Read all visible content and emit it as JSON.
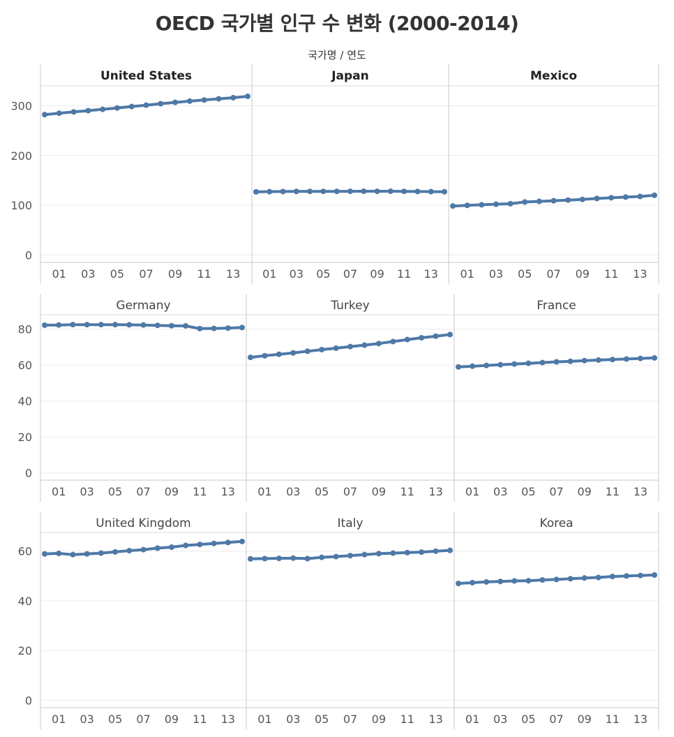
{
  "chart_data": {
    "type": "line",
    "title": "OECD 국가별 인구 수 변화 (2000-2014)",
    "subtitle": "국가명 / 연도",
    "x": [
      2000,
      2001,
      2002,
      2003,
      2004,
      2005,
      2006,
      2007,
      2008,
      2009,
      2010,
      2011,
      2012,
      2013,
      2014
    ],
    "x_tick_labels": [
      "01",
      "03",
      "05",
      "07",
      "09",
      "11",
      "13"
    ],
    "rows": [
      {
        "y_ticks": [
          0,
          100,
          200,
          300
        ],
        "ylim": [
          -15,
          340
        ],
        "panels": [
          {
            "name": "United States",
            "values": [
              282.2,
              285.0,
              287.6,
              290.1,
              292.8,
              295.5,
              298.4,
              301.2,
              304.1,
              306.8,
              309.3,
              311.6,
              313.9,
              316.1,
              318.9
            ]
          },
          {
            "name": "Japan",
            "values": [
              126.9,
              127.3,
              127.5,
              127.7,
              127.8,
              127.8,
              127.9,
              128.0,
              128.1,
              128.0,
              128.1,
              127.8,
              127.6,
              127.3,
              127.1
            ]
          },
          {
            "name": "Mexico",
            "values": [
              98.4,
              99.7,
              100.9,
              102.0,
              103.0,
              106.5,
              107.7,
              109.0,
              110.3,
              111.7,
              113.5,
              115.0,
              116.3,
              117.6,
              120.0
            ]
          }
        ]
      },
      {
        "y_ticks": [
          0,
          20,
          40,
          60,
          80
        ],
        "ylim": [
          -4,
          88
        ],
        "panels": [
          {
            "name": "Germany",
            "values": [
              82.2,
              82.3,
              82.5,
              82.5,
              82.5,
              82.5,
              82.4,
              82.3,
              82.1,
              81.9,
              81.8,
              80.3,
              80.4,
              80.6,
              80.9
            ]
          },
          {
            "name": "Turkey",
            "values": [
              64.3,
              65.2,
              66.0,
              66.8,
              67.7,
              68.6,
              69.4,
              70.3,
              71.1,
              72.0,
              73.1,
              74.2,
              75.2,
              76.1,
              77.0
            ]
          },
          {
            "name": "France",
            "values": [
              59.0,
              59.4,
              59.8,
              60.2,
              60.6,
              61.0,
              61.4,
              61.8,
              62.1,
              62.5,
              62.8,
              63.1,
              63.4,
              63.7,
              64.0
            ]
          }
        ]
      },
      {
        "y_ticks": [
          0,
          20,
          40,
          60
        ],
        "ylim": [
          -3,
          67.5
        ],
        "panels": [
          {
            "name": "United Kingdom",
            "values": [
              58.9,
              59.1,
              58.6,
              58.9,
              59.2,
              59.7,
              60.2,
              60.6,
              61.2,
              61.6,
              62.3,
              62.7,
              63.1,
              63.5,
              63.9
            ]
          },
          {
            "name": "Italy",
            "values": [
              56.9,
              57.0,
              57.1,
              57.2,
              57.0,
              57.5,
              57.8,
              58.2,
              58.6,
              59.0,
              59.2,
              59.4,
              59.6,
              60.0,
              60.3
            ]
          },
          {
            "name": "Korea",
            "values": [
              47.0,
              47.3,
              47.6,
              47.8,
              48.0,
              48.1,
              48.4,
              48.6,
              48.9,
              49.2,
              49.4,
              49.8,
              50.0,
              50.2,
              50.4
            ]
          }
        ]
      }
    ]
  },
  "style": {
    "line_color": "#4e79a7",
    "header_bold_rows": [
      true,
      false,
      false
    ]
  }
}
